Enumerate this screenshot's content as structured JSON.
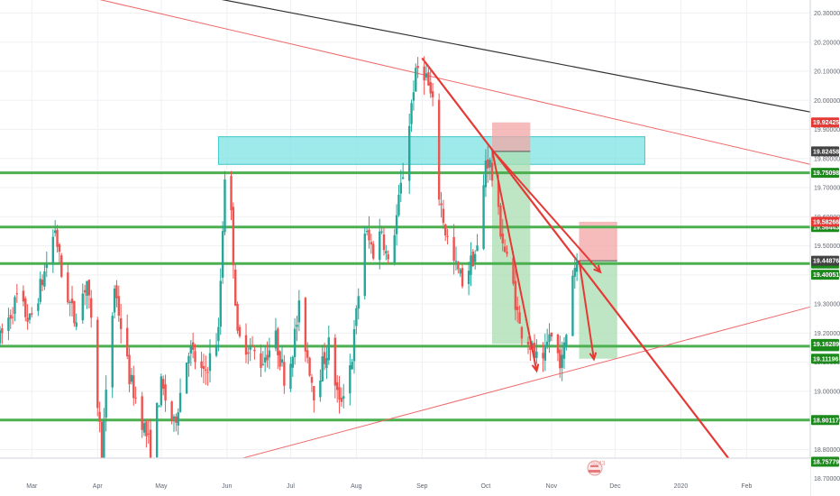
{
  "chart_data": {
    "type": "candlestick",
    "ylim": [
      18.64,
      20.345
    ],
    "x_range": [
      "2019-02-14",
      "2020-03-02"
    ],
    "y_ticks": [
      "20.30000",
      "20.20000",
      "20.10000",
      "20.00000",
      "19.90000",
      "19.80000",
      "19.70000",
      "19.60000",
      "19.50000",
      "19.40000",
      "19.30000",
      "19.20000",
      "19.10000",
      "19.00000",
      "18.90000",
      "18.80000",
      "18.70000"
    ],
    "x_ticks": [
      {
        "label": "Mar",
        "date": "2019-03-01"
      },
      {
        "label": "Apr",
        "date": "2019-04-01"
      },
      {
        "label": "May",
        "date": "2019-05-01"
      },
      {
        "label": "Jun",
        "date": "2019-06-01"
      },
      {
        "label": "Jul",
        "date": "2019-07-01"
      },
      {
        "label": "Aug",
        "date": "2019-08-01"
      },
      {
        "label": "Sep",
        "date": "2019-09-01"
      },
      {
        "label": "Oct",
        "date": "2019-10-01"
      },
      {
        "label": "Nov",
        "date": "2019-11-01"
      },
      {
        "label": "Dec",
        "date": "2019-12-01"
      },
      {
        "label": "2020",
        "date": "2020-01-01"
      },
      {
        "label": "Feb",
        "date": "2020-02-01"
      }
    ],
    "anchors": [
      [
        "2019-02-14",
        19.18
      ],
      [
        "2019-02-22",
        19.32
      ],
      [
        "2019-02-28",
        19.24
      ],
      [
        "2019-03-06",
        19.38
      ],
      [
        "2019-03-12",
        19.56
      ],
      [
        "2019-03-15",
        19.4
      ],
      [
        "2019-03-21",
        19.25
      ],
      [
        "2019-03-27",
        19.38
      ],
      [
        "2019-03-29",
        19.22
      ],
      [
        "2019-04-03",
        18.79
      ],
      [
        "2019-04-09",
        19.36
      ],
      [
        "2019-04-16",
        19.05
      ],
      [
        "2019-04-22",
        18.9
      ],
      [
        "2019-04-26",
        18.8
      ],
      [
        "2019-05-01",
        19.02
      ],
      [
        "2019-05-07",
        18.88
      ],
      [
        "2019-05-14",
        19.15
      ],
      [
        "2019-05-21",
        19.05
      ],
      [
        "2019-05-28",
        19.2
      ],
      [
        "2019-05-31",
        19.75
      ],
      [
        "2019-06-03",
        19.6
      ],
      [
        "2019-06-06",
        19.18
      ],
      [
        "2019-06-12",
        19.15
      ],
      [
        "2019-06-17",
        19.1
      ],
      [
        "2019-06-24",
        19.18
      ],
      [
        "2019-06-29",
        19.02
      ],
      [
        "2019-07-05",
        19.28
      ],
      [
        "2019-07-12",
        19.0
      ],
      [
        "2019-07-19",
        19.16
      ],
      [
        "2019-07-24",
        18.95
      ],
      [
        "2019-07-30",
        19.12
      ],
      [
        "2019-08-05",
        19.55
      ],
      [
        "2019-08-09",
        19.48
      ],
      [
        "2019-08-13",
        19.56
      ],
      [
        "2019-08-16",
        19.43
      ],
      [
        "2019-08-20",
        19.6
      ],
      [
        "2019-08-24",
        19.8
      ],
      [
        "2019-08-28",
        20.05
      ],
      [
        "2019-08-31",
        20.14
      ],
      [
        "2019-09-03",
        20.08
      ],
      [
        "2019-09-06",
        19.98
      ],
      [
        "2019-09-08",
        19.72
      ],
      [
        "2019-09-12",
        19.55
      ],
      [
        "2019-09-16",
        19.44
      ],
      [
        "2019-09-20",
        19.38
      ],
      [
        "2019-09-25",
        19.46
      ],
      [
        "2019-09-28",
        19.5
      ],
      [
        "2019-10-01",
        19.8
      ],
      [
        "2019-10-03",
        19.78
      ],
      [
        "2019-10-07",
        19.6
      ],
      [
        "2019-10-10",
        19.48
      ],
      [
        "2019-10-14",
        19.36
      ],
      [
        "2019-10-17",
        19.22
      ],
      [
        "2019-10-21",
        19.18
      ],
      [
        "2019-10-24",
        19.12
      ],
      [
        "2019-10-28",
        19.08
      ],
      [
        "2019-10-31",
        19.2
      ],
      [
        "2019-11-03",
        19.14
      ],
      [
        "2019-11-06",
        19.1
      ],
      [
        "2019-11-08",
        19.2
      ],
      [
        "2019-11-11",
        19.41
      ],
      [
        "2019-11-13",
        19.45
      ]
    ],
    "horizontal_lines": [
      {
        "price": 19.75098,
        "label": "19.75098",
        "color": "#4caf50",
        "label_bg": "#1b8a1b"
      },
      {
        "price": 19.56443,
        "label": "19.56443",
        "color": "#4caf50",
        "label_bg": "#1b8a1b"
      },
      {
        "price": 19.43921,
        "label": "19.43921",
        "color": "#4caf50",
        "label_bg": "#1b8a1b"
      },
      {
        "price": 19.15489,
        "label": "19.15489",
        "color": "#4caf50",
        "label_bg": "#1b8a1b"
      },
      {
        "price": 18.90117,
        "label": "18.90117",
        "color": "#4caf50",
        "label_bg": "#1b8a1b"
      },
      {
        "price": 18.75779,
        "label": "18.75779",
        "color": "#4caf50",
        "label_bg": "#1b8a1b"
      }
    ],
    "price_badges": [
      {
        "price": 19.92425,
        "label": "19.92425",
        "bg": "#e53935",
        "fg": "#ffffff"
      },
      {
        "price": 19.82458,
        "label": "19.82458",
        "bg": "#424242",
        "fg": "#ffffff"
      },
      {
        "price": 19.58266,
        "label": "19.58266",
        "bg": "#e53935",
        "fg": "#ffffff"
      },
      {
        "price": 19.44876,
        "label": "19.44876",
        "bg": "#424242",
        "fg": "#ffffff"
      },
      {
        "price": 19.40051,
        "label": "19.40051",
        "bg": "#1b8a1b",
        "fg": "#ffffff"
      },
      {
        "price": 19.16289,
        "label": "19.16289",
        "bg": "#1b8a1b",
        "fg": "#ffffff"
      },
      {
        "price": 19.11196,
        "label": "19.11196",
        "bg": "#1b8a1b",
        "fg": "#ffffff"
      }
    ],
    "zones": [
      {
        "kind": "resistance",
        "x0": "2019-05-28",
        "x1": "2019-12-15",
        "y0": 19.78,
        "y1": 19.875,
        "fill": "#7de3e3",
        "stroke": "#3cc8c8"
      },
      {
        "kind": "stop",
        "x0": "2019-10-04",
        "x1": "2019-10-22",
        "y0": 19.82458,
        "y1": 19.92425,
        "fill": "#f3a6a6"
      },
      {
        "kind": "target",
        "x0": "2019-10-04",
        "x1": "2019-10-22",
        "y0": 19.16289,
        "y1": 19.82458,
        "fill": "#a9ddb0"
      },
      {
        "kind": "stop",
        "x0": "2019-11-14",
        "x1": "2019-12-02",
        "y0": 19.44876,
        "y1": 19.58266,
        "fill": "#f3a6a6"
      },
      {
        "kind": "target",
        "x0": "2019-11-14",
        "x1": "2019-12-02",
        "y0": 19.11196,
        "y1": 19.44876,
        "fill": "#a9ddb0"
      }
    ],
    "trend_lines": [
      {
        "x0": "2019-04-05",
        "y0": 18.645,
        "x1": "2020-03-02",
        "y1": 19.29,
        "color": "#f06b6b",
        "width": 1
      },
      {
        "x0": "2019-03-25",
        "y0": 20.36,
        "x1": "2020-03-02",
        "y1": 19.78,
        "color": "#f06b6b",
        "width": 1
      },
      {
        "x0": "2019-05-20",
        "y0": 20.36,
        "x1": "2020-03-02",
        "y1": 19.96,
        "color": "#333333",
        "width": 1.2
      },
      {
        "x0": "2019-09-01",
        "y0": 20.145,
        "x1": "2020-02-05",
        "y1": 18.65,
        "color": "#e53935",
        "width": 2.2
      }
    ],
    "arrows": [
      {
        "x0": "2019-10-04",
        "y0": 19.83,
        "x1": "2019-10-25",
        "y1": 19.07,
        "color": "#e53935"
      },
      {
        "x0": "2019-10-04",
        "y0": 19.83,
        "x1": "2019-11-24",
        "y1": 19.41,
        "color": "#e53935"
      },
      {
        "x0": "2019-11-14",
        "y0": 19.45,
        "x1": "2019-11-21",
        "y1": 19.11,
        "color": "#e53935"
      }
    ],
    "ref_lines": [
      {
        "x0": "2019-10-04",
        "x1": "2019-10-22",
        "y": 19.82458,
        "color": "#555555"
      },
      {
        "x0": "2019-11-14",
        "x1": "2019-12-02",
        "y": 19.44876,
        "color": "#555555"
      }
    ],
    "grid": true,
    "up_color": "#26a69a",
    "down_color": "#ef5350",
    "gridline_color": "#eef0f3",
    "watermark": "5243"
  }
}
